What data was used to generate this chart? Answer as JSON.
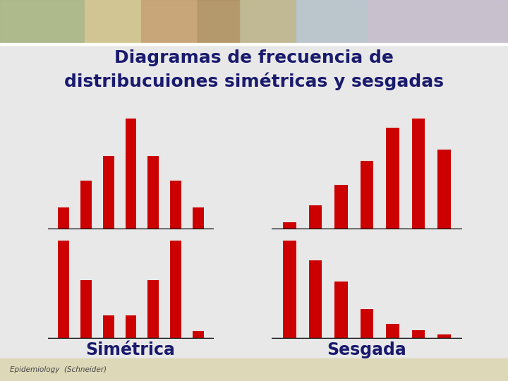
{
  "title_line1": "Diagramas de frecuencia de",
  "title_line2": "distribucuiones simétricas y sesgadas",
  "label_simetrica": "Simétrica",
  "label_sesgada": "Sesgada",
  "credit": "Epidemiology  (Schneider)",
  "bar_color": "#cc0000",
  "bg_color": "#e8e8e8",
  "title_color": "#1a1a6e",
  "label_color": "#1a1a6e",
  "credit_color": "#444444",
  "sym_top": [
    1.0,
    2.2,
    3.3,
    5.0,
    3.3,
    2.2,
    1.0
  ],
  "sym_bot": [
    5.0,
    3.0,
    1.2,
    1.2,
    3.0,
    5.0,
    0.4
  ],
  "skew_top": [
    0.4,
    1.3,
    2.4,
    3.7,
    5.5,
    6.0,
    4.3
  ],
  "skew_bot": [
    6.0,
    4.8,
    3.5,
    1.8,
    0.9,
    0.5,
    0.25
  ],
  "header_band_colors": [
    "#88aa66",
    "#ddcc88",
    "#bb9955",
    "#cc8844",
    "#8899aa",
    "#aabbcc",
    "#ccddee"
  ],
  "header_band_alphas": [
    0.9,
    0.85,
    0.8,
    0.85,
    0.9,
    0.85,
    0.8
  ]
}
